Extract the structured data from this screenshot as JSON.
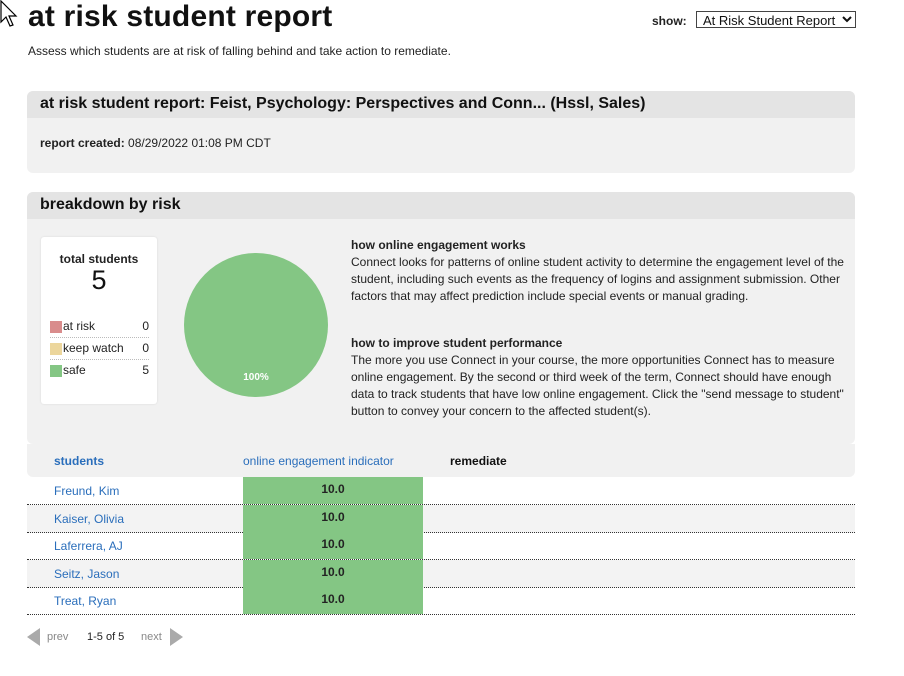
{
  "header": {
    "title": "at risk student report",
    "subtitle": "Assess which students are at risk of falling behind and take action to remediate.",
    "show_label": "show:",
    "show_value": "At Risk Student Report"
  },
  "report_panel": {
    "title": "at risk student report: Feist, Psychology: Perspectives and Conn... (Hssl, Sales)",
    "created_label": "report created:",
    "created_value": "08/29/2022 01:08 PM CDT"
  },
  "breakdown": {
    "title": "breakdown by risk",
    "total_label": "total students",
    "total_value": "5",
    "legend": [
      {
        "label": "at risk",
        "count": "0",
        "color": "#d98c8c"
      },
      {
        "label": "keep watch",
        "count": "0",
        "color": "#ecd69c"
      },
      {
        "label": "safe",
        "count": "5",
        "color": "#84c684"
      }
    ],
    "pie_label": "100%",
    "info": [
      {
        "heading": "how online engagement works",
        "text": "Connect looks for patterns of online student activity to determine the engagement level of the student, including such events as the frequency of logins and assignment submission. Other factors that may affect prediction include special events or manual grading."
      },
      {
        "heading": "how to improve student performance",
        "text": "The more you use Connect in your course, the more opportunities Connect has to measure online engagement. By the second or third week of the term, Connect should have enough data to track students that have low online engagement. Click the \"send message to student\" button to convey your concern to the affected student(s)."
      }
    ]
  },
  "table": {
    "columns": {
      "students": "students",
      "oei": "online engagement indicator",
      "remediate": "remediate"
    },
    "rows": [
      {
        "name": "Freund, Kim",
        "score": "10.0"
      },
      {
        "name": "Kaiser, Olivia",
        "score": "10.0"
      },
      {
        "name": "Laferrera, AJ",
        "score": "10.0"
      },
      {
        "name": "Seitz, Jason",
        "score": "10.0"
      },
      {
        "name": "Treat, Ryan",
        "score": "10.0"
      }
    ]
  },
  "pager": {
    "prev": "prev",
    "range": "1-5 of 5",
    "next": "next"
  }
}
